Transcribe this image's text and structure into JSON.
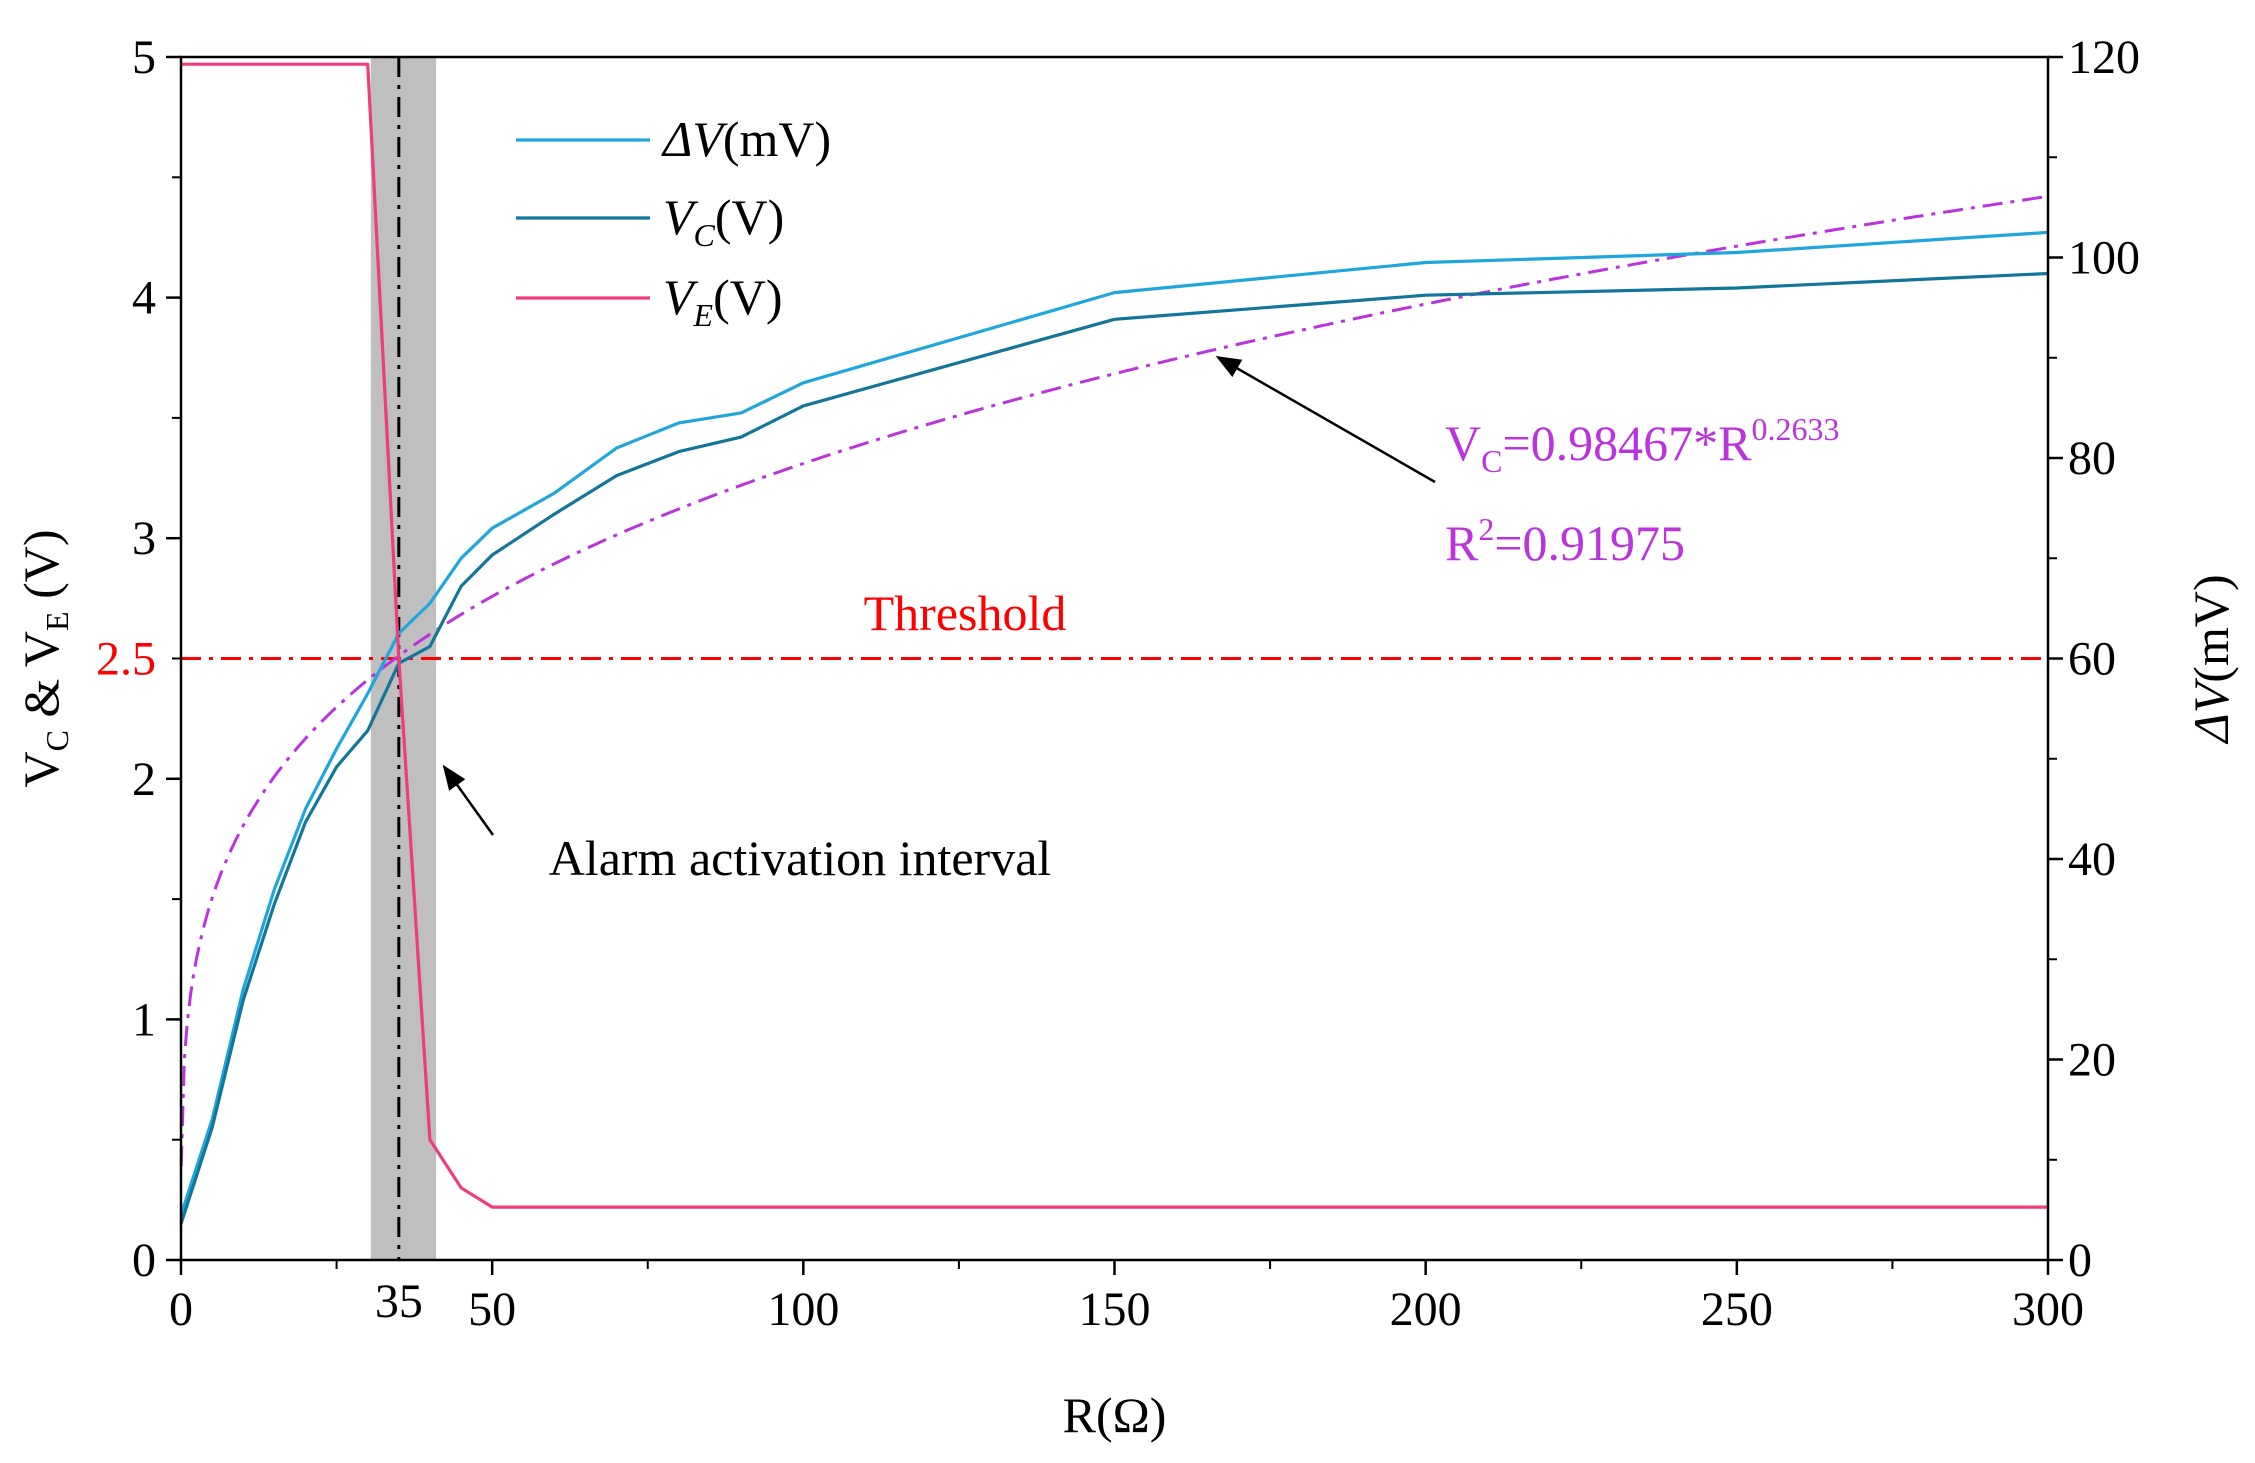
{
  "chart_data": {
    "type": "line",
    "xlabel": "R(Ω)",
    "ylabel_left": {
      "main": "V",
      "sub1": "C",
      "mid": " & V",
      "sub2": "E",
      "end": " (V)"
    },
    "ylabel_right": {
      "italic": "ΔV",
      "rest": "(mV)"
    },
    "xlim": [
      0,
      300
    ],
    "ylim_left": [
      0,
      5
    ],
    "ylim_right": [
      0,
      120
    ],
    "x_ticks": [
      0,
      50,
      100,
      150,
      200,
      250,
      300
    ],
    "x_tick_labels": [
      "0",
      "50",
      "100",
      "150",
      "200",
      "250",
      "300"
    ],
    "x_minor_ticks": [
      25,
      75,
      125,
      175,
      225,
      275
    ],
    "special_x_label": {
      "value": 35,
      "text": "35"
    },
    "y_left_ticks": [
      0,
      1,
      2,
      3,
      4,
      5
    ],
    "y_left_tick_labels": [
      "0",
      "1",
      "2",
      "3",
      "4",
      "5"
    ],
    "y_left_minor_ticks": [
      0.5,
      1.5,
      2.5,
      3.5,
      4.5
    ],
    "special_y_label": {
      "value": 2.5,
      "text": "2.5",
      "color": "#ff0000"
    },
    "y_right_ticks": [
      0,
      20,
      40,
      60,
      80,
      100,
      120
    ],
    "y_right_tick_labels": [
      "0",
      "20",
      "40",
      "60",
      "80",
      "100",
      "120"
    ],
    "y_right_minor_ticks": [
      10,
      30,
      50,
      70,
      90,
      110
    ],
    "series": [
      {
        "name": "ΔV(mV)",
        "legend": {
          "italic": "ΔV",
          "sub": "",
          "rest": "(mV)"
        },
        "axis": "right",
        "color": "#1fa6dc",
        "x": [
          0,
          5,
          10,
          15,
          20,
          25,
          30,
          35,
          40,
          45,
          50,
          60,
          70,
          80,
          90,
          100,
          150,
          200,
          250,
          300
        ],
        "values": [
          4.5,
          14,
          27,
          37,
          45,
          51,
          56.5,
          62.5,
          65.5,
          70,
          73,
          76.5,
          81,
          83.5,
          84.5,
          87.5,
          96.5,
          99.5,
          100.5,
          102.5
        ]
      },
      {
        "name": "VC(V)",
        "legend": {
          "italic": "V",
          "sub": "C",
          "rest": "(V)"
        },
        "axis": "left",
        "color": "#127599",
        "x": [
          0,
          5,
          10,
          15,
          20,
          25,
          30,
          35,
          40,
          45,
          50,
          60,
          70,
          80,
          90,
          100,
          150,
          200,
          250,
          300
        ],
        "values": [
          0.15,
          0.55,
          1.08,
          1.48,
          1.82,
          2.05,
          2.2,
          2.48,
          2.55,
          2.8,
          2.93,
          3.1,
          3.26,
          3.36,
          3.42,
          3.55,
          3.91,
          4.01,
          4.04,
          4.1
        ]
      },
      {
        "name": "VE(V)",
        "legend": {
          "italic": "V",
          "sub": "E",
          "rest": "(V)"
        },
        "axis": "left",
        "color": "#ee3d7e",
        "x": [
          0,
          10,
          20,
          25,
          30,
          35,
          40,
          45,
          50,
          100,
          150,
          200,
          250,
          300
        ],
        "values": [
          4.97,
          4.97,
          4.97,
          4.97,
          4.97,
          2.5,
          0.5,
          0.3,
          0.22,
          0.22,
          0.22,
          0.22,
          0.22,
          0.22
        ]
      }
    ],
    "fit": {
      "color": "#bb33dd",
      "coefficient": 0.98467,
      "exponent": 0.2633,
      "equation": {
        "lhs": "V",
        "lhs_sub": "C",
        "mid": "=0.98467*R",
        "sup": "0.2633"
      },
      "r2": {
        "base": "R",
        "sup": "2",
        "rest": "=0.91975"
      }
    },
    "threshold": {
      "value": 2.5,
      "label": "Threshold",
      "color": "#ff0000"
    },
    "alarm_interval": {
      "x_from": 30.5,
      "x_to": 41,
      "marker_x": 35,
      "label": "Alarm activation interval",
      "fill": "#bfbfbf"
    }
  }
}
